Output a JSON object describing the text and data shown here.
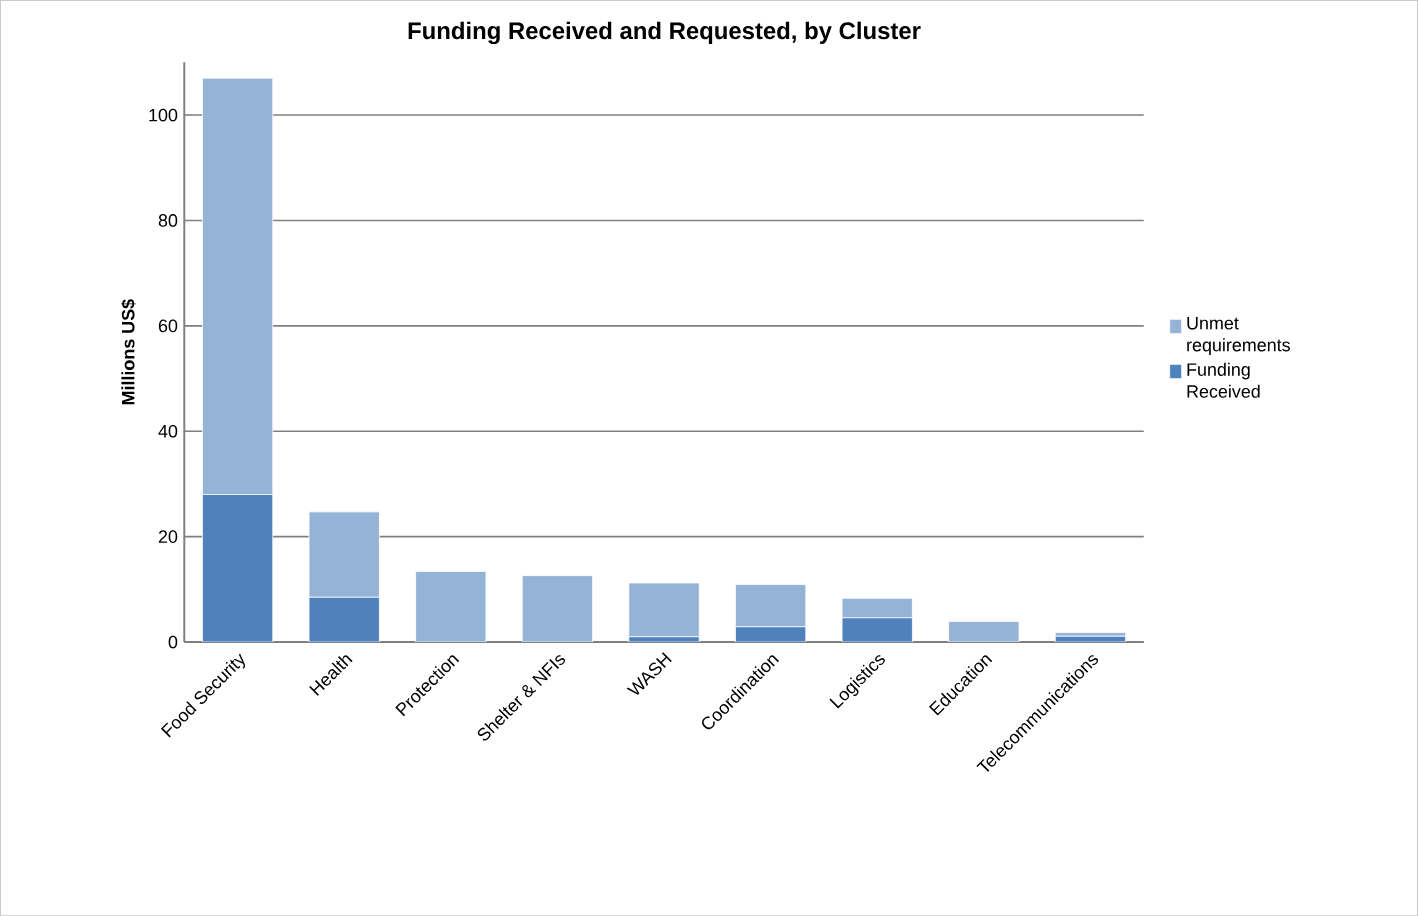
{
  "chart_data": {
    "type": "bar",
    "stacked": true,
    "title": "Funding Received and Requested, by Cluster",
    "ylabel": "Millions US$",
    "categories": [
      "Food Security",
      "Health",
      "Protection",
      "Shelter & NFIs",
      "WASH",
      "Coordination",
      "Logistics",
      "Education",
      "Telecommunications"
    ],
    "series": [
      {
        "name": "Funding Received",
        "color": "#4f81bd",
        "values": [
          28,
          8.5,
          0,
          0,
          1,
          2.9,
          4.6,
          0,
          1.1
        ]
      },
      {
        "name": "Unmet requirements",
        "color": "#95b3d7",
        "values": [
          79,
          16.2,
          13.4,
          12.6,
          10.2,
          8,
          3.7,
          3.9,
          0.7
        ]
      }
    ],
    "ylim": [
      0,
      110
    ],
    "yticks": [
      0,
      20,
      40,
      60,
      80,
      100
    ],
    "grid": "y",
    "legend": "right"
  }
}
